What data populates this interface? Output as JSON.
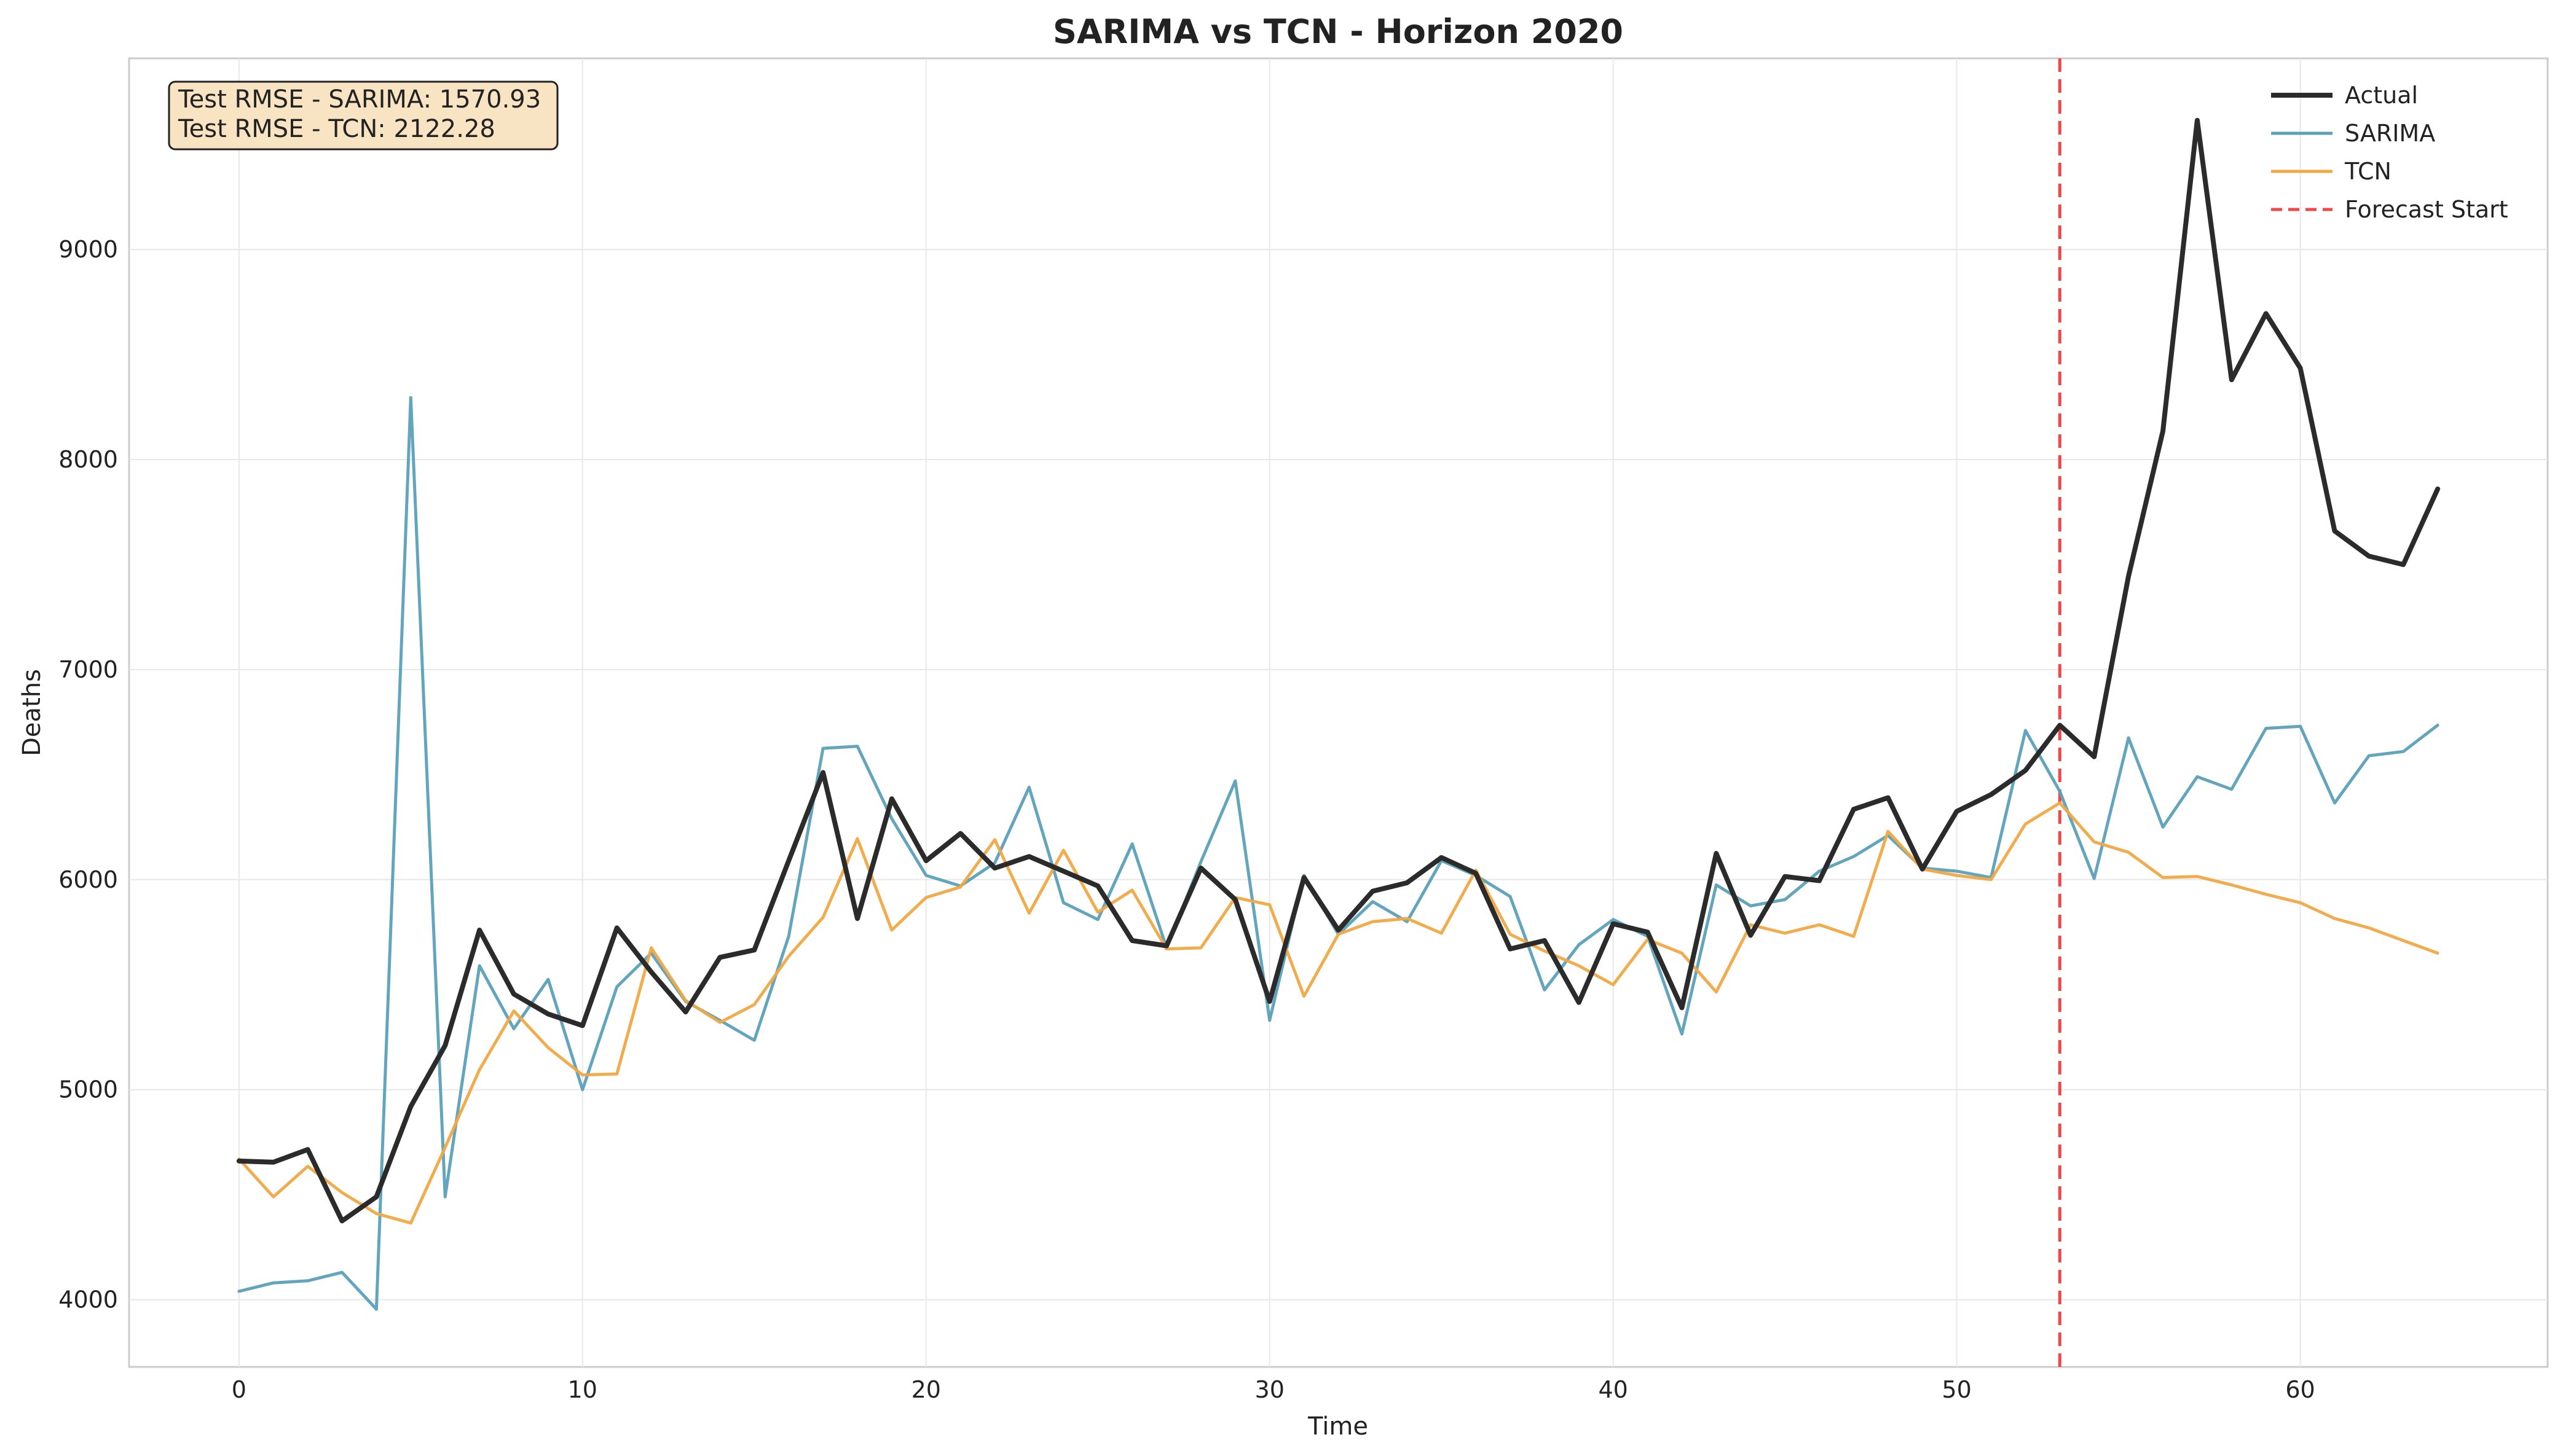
{
  "chart_data": {
    "type": "line",
    "title": "SARIMA vs TCN - Horizon 2020",
    "xlabel": "Time",
    "ylabel": "Deaths",
    "xlim": [
      -3.2,
      67.2
    ],
    "ylim": [
      3680,
      9910
    ],
    "xticks": [
      0,
      10,
      20,
      30,
      40,
      50,
      60
    ],
    "yticks": [
      4000,
      5000,
      6000,
      7000,
      8000,
      9000
    ],
    "grid": true,
    "legend_position": "top-right",
    "forecast_start": 53,
    "annotation": {
      "lines": [
        "Test RMSE - SARIMA: 1570.93",
        "Test RMSE - TCN: 2122.28"
      ],
      "position": "top-left",
      "background": "#f8e4c3",
      "border": "#222222"
    },
    "series": [
      {
        "name": "Actual",
        "color": "#2b2b2b",
        "style": "solid-thick",
        "values": [
          4660,
          4655,
          4715,
          4375,
          4490,
          4920,
          5210,
          5760,
          5455,
          5360,
          5305,
          5770,
          5560,
          5370,
          5630,
          5665,
          6090,
          6510,
          5815,
          6385,
          6090,
          6220,
          6055,
          6110,
          6040,
          5970,
          5710,
          5685,
          6055,
          5905,
          5420,
          6010,
          5760,
          5945,
          5985,
          6105,
          6030,
          5670,
          5710,
          5415,
          5790,
          5750,
          5390,
          6125,
          5735,
          6015,
          5995,
          6335,
          6390,
          6050,
          6325,
          6405,
          6520,
          6735,
          6585,
          7445,
          8135,
          9615,
          8380,
          8695,
          8435,
          7660,
          7540,
          7500,
          7860
        ]
      },
      {
        "name": "SARIMA",
        "color": "#5aa0b8",
        "style": "solid",
        "values": [
          4040,
          4080,
          4090,
          4130,
          3955,
          8295,
          4490,
          5590,
          5290,
          5525,
          5000,
          5490,
          5650,
          5420,
          5330,
          5235,
          5730,
          6625,
          6635,
          6290,
          6020,
          5970,
          6080,
          6440,
          5890,
          5810,
          6170,
          5675,
          6085,
          6470,
          5330,
          6020,
          5740,
          5895,
          5800,
          6090,
          6020,
          5920,
          5475,
          5690,
          5810,
          5730,
          5265,
          5975,
          5875,
          5905,
          6040,
          6110,
          6210,
          6055,
          6040,
          6010,
          6710,
          6420,
          6005,
          6675,
          6250,
          6490,
          6430,
          6720,
          6730,
          6365,
          6590,
          6610,
          6735
        ]
      },
      {
        "name": "TCN",
        "color": "#f0a843",
        "style": "solid",
        "values": [
          4670,
          4490,
          4635,
          4510,
          4410,
          4365,
          4725,
          5095,
          5375,
          5200,
          5070,
          5075,
          5675,
          5425,
          5320,
          5405,
          5635,
          5820,
          6195,
          5760,
          5915,
          5965,
          6190,
          5840,
          6140,
          5845,
          5950,
          5670,
          5675,
          5915,
          5880,
          5445,
          5740,
          5800,
          5815,
          5745,
          6045,
          5740,
          5660,
          5590,
          5500,
          5715,
          5650,
          5465,
          5785,
          5745,
          5785,
          5730,
          6230,
          6050,
          6020,
          6000,
          6265,
          6365,
          6180,
          6130,
          6010,
          6015,
          5975,
          5930,
          5890,
          5815,
          5770,
          5710,
          5650
        ]
      }
    ],
    "legend": [
      {
        "label": "Actual",
        "color": "#2b2b2b",
        "dash": false
      },
      {
        "label": "SARIMA",
        "color": "#5aa0b8",
        "dash": false
      },
      {
        "label": "TCN",
        "color": "#f0a843",
        "dash": false
      },
      {
        "label": "Forecast Start",
        "color": "#f04848",
        "dash": true
      }
    ]
  }
}
